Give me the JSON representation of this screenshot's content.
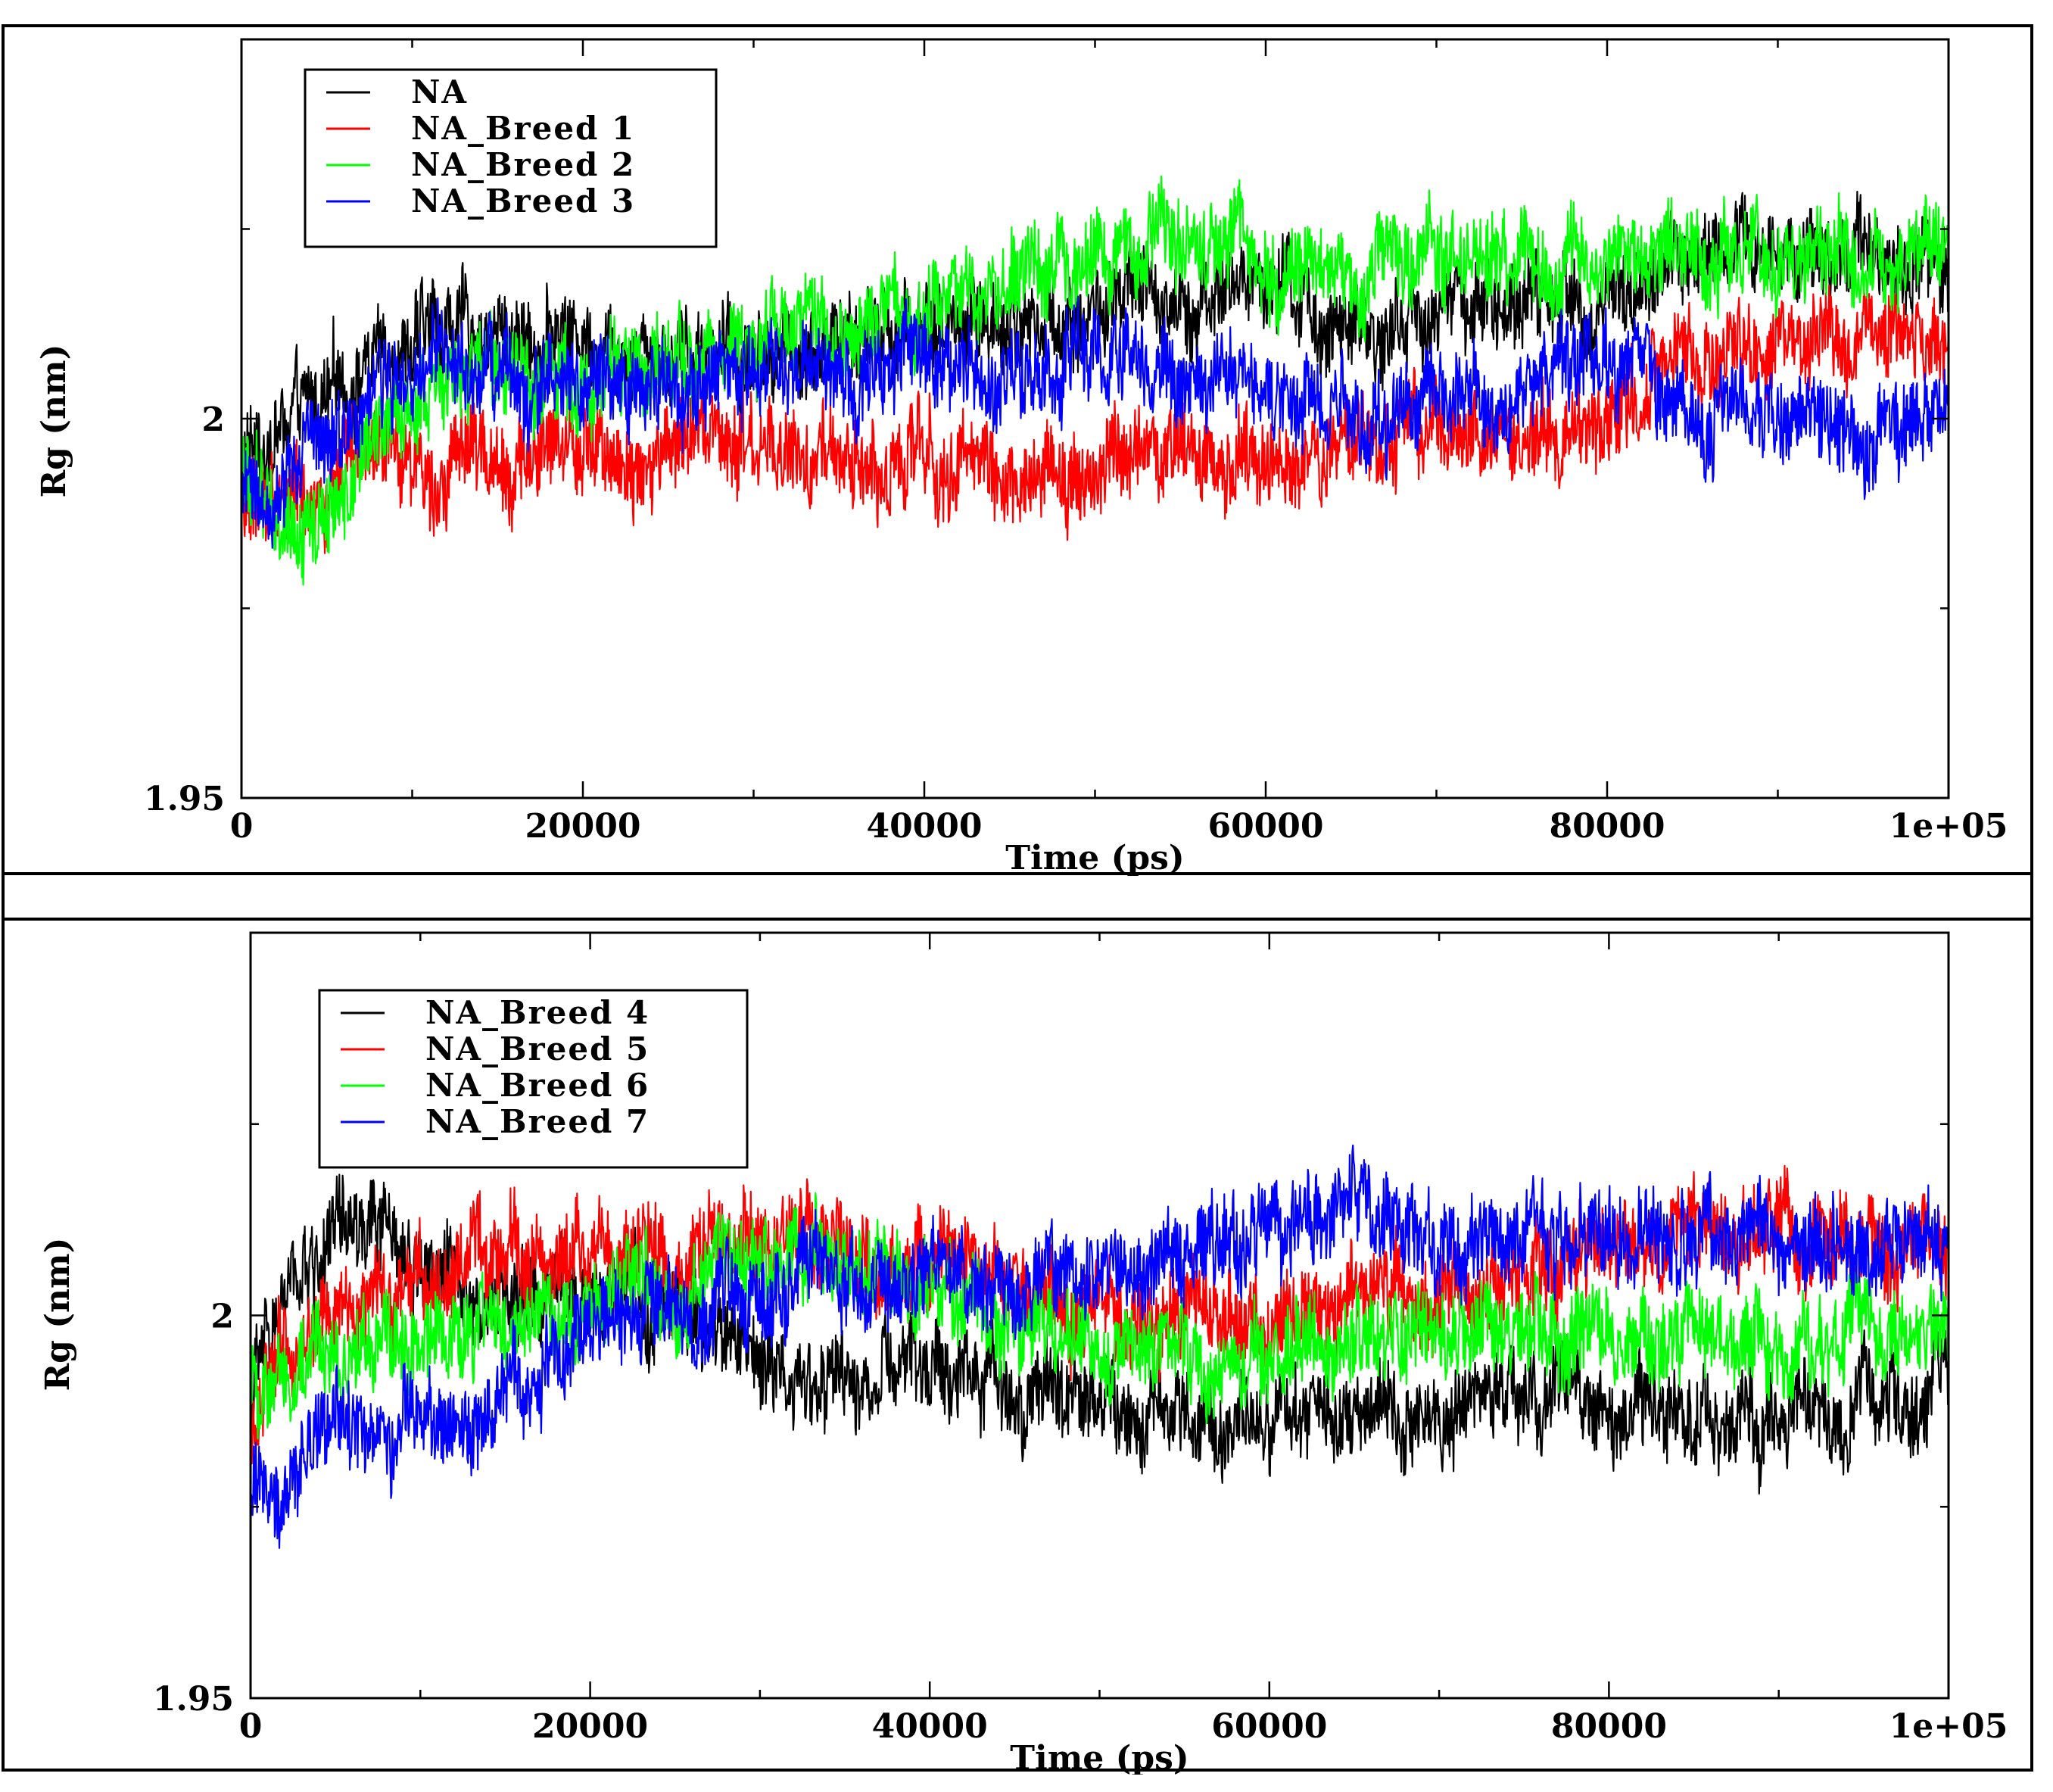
{
  "chart_data": [
    {
      "type": "line",
      "title": "",
      "xlabel": "Time (ps)",
      "ylabel": "Rg (nm)",
      "xlim": [
        0,
        100000
      ],
      "ylim": [
        1.95,
        2.05
      ],
      "x_ticks": [
        "0",
        "20000",
        "40000",
        "60000",
        "80000",
        "1e+05"
      ],
      "y_ticks": [
        "1.95",
        "2"
      ],
      "legend_position": "top-left",
      "series": [
        {
          "name": "NA",
          "color": "#000000",
          "x": [
            0,
            2000,
            5000,
            8000,
            12000,
            16000,
            20000,
            25000,
            30000,
            35000,
            40000,
            45000,
            50000,
            55000,
            60000,
            65000,
            70000,
            75000,
            80000,
            85000,
            90000,
            95000,
            100000
          ],
          "values": [
            1.994,
            1.998,
            2.002,
            2.009,
            2.012,
            2.011,
            2.011,
            2.01,
            2.009,
            2.01,
            2.012,
            2.013,
            2.014,
            2.016,
            2.018,
            2.01,
            2.014,
            2.016,
            2.016,
            2.021,
            2.022,
            2.023,
            2.021
          ]
        },
        {
          "name": "NA_Breed 1",
          "color": "#ff0000",
          "x": [
            0,
            2000,
            5000,
            8000,
            12000,
            16000,
            20000,
            25000,
            30000,
            35000,
            40000,
            45000,
            50000,
            55000,
            60000,
            65000,
            70000,
            75000,
            80000,
            85000,
            90000,
            95000,
            100000
          ],
          "values": [
            1.988,
            1.99,
            1.991,
            1.994,
            1.995,
            1.995,
            1.995,
            1.996,
            1.995,
            1.993,
            1.995,
            1.993,
            1.993,
            1.995,
            1.995,
            1.996,
            1.997,
            1.997,
            2.0,
            2.007,
            2.009,
            2.011,
            2.011
          ]
        },
        {
          "name": "NA_Breed 2",
          "color": "#00ff00",
          "x": [
            0,
            2000,
            5000,
            8000,
            12000,
            16000,
            20000,
            25000,
            30000,
            35000,
            40000,
            45000,
            50000,
            55000,
            60000,
            65000,
            70000,
            75000,
            80000,
            85000,
            90000,
            95000,
            100000
          ],
          "values": [
            1.993,
            1.988,
            1.986,
            1.998,
            2.005,
            2.005,
            2.006,
            2.007,
            2.009,
            2.011,
            2.015,
            2.018,
            2.022,
            2.023,
            2.022,
            2.02,
            2.023,
            2.022,
            2.02,
            2.023,
            2.022,
            2.021,
            2.024
          ]
        },
        {
          "name": "NA_Breed 3",
          "color": "#0000ff",
          "x": [
            0,
            2000,
            5000,
            8000,
            12000,
            16000,
            20000,
            25000,
            30000,
            35000,
            40000,
            45000,
            50000,
            55000,
            60000,
            65000,
            70000,
            75000,
            80000,
            85000,
            90000,
            95000,
            100000
          ],
          "values": [
            1.988,
            1.992,
            1.997,
            2.005,
            2.006,
            2.005,
            2.003,
            2.004,
            2.005,
            2.007,
            2.007,
            2.006,
            2.006,
            2.005,
            2.005,
            2.0,
            2.002,
            2.005,
            2.007,
            2.001,
            2.0,
            1.999,
            2.002
          ]
        }
      ]
    },
    {
      "type": "line",
      "title": "",
      "xlabel": "Time (ps)",
      "ylabel": "Rg (nm)",
      "xlim": [
        0,
        100000
      ],
      "ylim": [
        1.95,
        2.05
      ],
      "x_ticks": [
        "0",
        "20000",
        "40000",
        "60000",
        "80000",
        "1e+05"
      ],
      "y_ticks": [
        "1.95",
        "2"
      ],
      "legend_position": "top-left",
      "series": [
        {
          "name": "NA_Breed 4",
          "color": "#000000",
          "x": [
            0,
            2000,
            5000,
            8000,
            12000,
            16000,
            20000,
            25000,
            30000,
            35000,
            40000,
            45000,
            50000,
            55000,
            60000,
            65000,
            70000,
            75000,
            80000,
            85000,
            90000,
            95000,
            100000
          ],
          "values": [
            1.99,
            2.002,
            2.01,
            2.01,
            2.005,
            2.002,
            2.002,
            2.0,
            1.995,
            1.99,
            1.993,
            1.991,
            1.989,
            1.988,
            1.987,
            1.989,
            1.988,
            1.99,
            1.987,
            1.987,
            1.986,
            1.987,
            1.99
          ]
        },
        {
          "name": "NA_Breed 5",
          "color": "#ff0000",
          "x": [
            0,
            2000,
            5000,
            8000,
            12000,
            16000,
            20000,
            25000,
            30000,
            35000,
            40000,
            45000,
            50000,
            55000,
            60000,
            65000,
            70000,
            75000,
            80000,
            85000,
            90000,
            95000,
            100000
          ],
          "values": [
            1.986,
            1.995,
            2.0,
            2.003,
            2.006,
            2.008,
            2.008,
            2.007,
            2.01,
            2.008,
            2.005,
            2.004,
            2.0,
            2.0,
            2.0,
            2.003,
            2.002,
            2.005,
            2.01,
            2.01,
            2.011,
            2.01,
            2.008
          ]
        },
        {
          "name": "NA_Breed 6",
          "color": "#00ff00",
          "x": [
            0,
            2000,
            5000,
            8000,
            12000,
            16000,
            20000,
            25000,
            30000,
            35000,
            40000,
            45000,
            50000,
            55000,
            60000,
            65000,
            70000,
            75000,
            80000,
            85000,
            90000,
            95000,
            100000
          ],
          "values": [
            1.99,
            1.994,
            1.996,
            1.996,
            1.996,
            1.999,
            2.002,
            2.004,
            2.008,
            2.006,
            2.003,
            2.0,
            1.996,
            1.995,
            1.995,
            1.997,
            1.997,
            1.999,
            2.0,
            1.998,
            1.996,
            1.996,
            1.999
          ]
        },
        {
          "name": "NA_Breed 7",
          "color": "#0000ff",
          "x": [
            0,
            2000,
            5000,
            8000,
            12000,
            16000,
            20000,
            25000,
            30000,
            35000,
            40000,
            45000,
            50000,
            55000,
            60000,
            65000,
            70000,
            75000,
            80000,
            85000,
            90000,
            95000,
            100000
          ],
          "values": [
            1.976,
            1.98,
            1.984,
            1.985,
            1.984,
            1.991,
            1.998,
            2.001,
            2.004,
            2.005,
            2.005,
            2.004,
            2.006,
            2.008,
            2.012,
            2.014,
            2.009,
            2.01,
            2.01,
            2.011,
            2.009,
            2.009,
            2.01
          ]
        }
      ]
    }
  ]
}
